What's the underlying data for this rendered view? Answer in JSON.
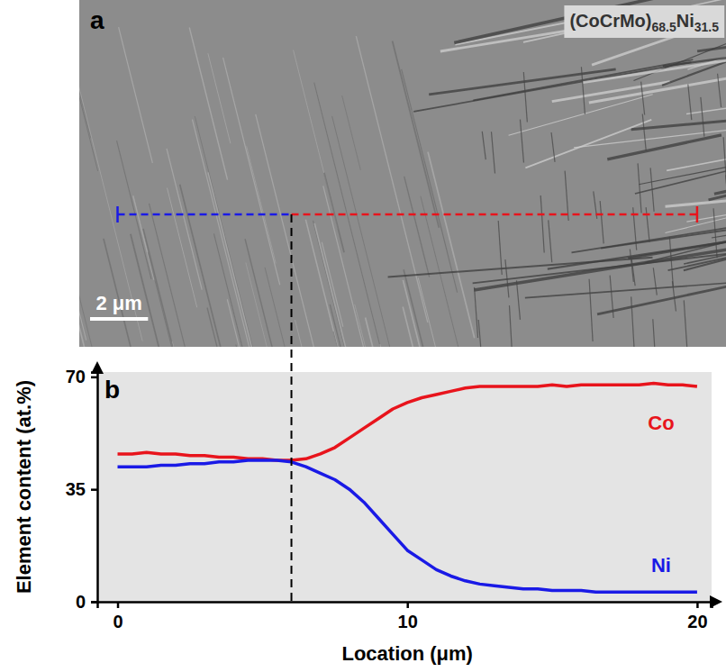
{
  "image_panel": {
    "letter": "a",
    "sample_label": [
      "(CoCrMo)",
      "68.5",
      "Ni",
      "31.5"
    ],
    "scale_bar": {
      "label": "2 μm",
      "value": 2
    }
  },
  "chart_data": {
    "type": "line",
    "letter": "b",
    "x_label": "Location (μm)",
    "y_label": "Element content (at.%)",
    "x": [
      0,
      0.5,
      1,
      1.5,
      2,
      2.5,
      3,
      3.5,
      4,
      4.5,
      5,
      5.5,
      6,
      6.5,
      7,
      7.5,
      8,
      8.5,
      9,
      9.5,
      10,
      10.5,
      11,
      11.5,
      12,
      12.5,
      13,
      13.5,
      14,
      14.5,
      15,
      15.5,
      16,
      16.5,
      17,
      17.5,
      18,
      18.5,
      19,
      19.5,
      20
    ],
    "series": [
      {
        "name": "Co",
        "color": "#e8141c",
        "line_style": "solid",
        "values": [
          46,
          46,
          46.5,
          46,
          46,
          45.5,
          45.5,
          45,
          45,
          44.5,
          44.5,
          44,
          44,
          44.5,
          46,
          48,
          51,
          54,
          57,
          60,
          62,
          63.5,
          64.5,
          65.5,
          66.5,
          67,
          67,
          67,
          67,
          67,
          67.5,
          67,
          67.5,
          67.5,
          67.5,
          67.5,
          67.5,
          68,
          67.5,
          67.5,
          67
        ]
      },
      {
        "name": "Ni",
        "color": "#1a1ae6",
        "line_style": "solid",
        "values": [
          42,
          42,
          42,
          42.5,
          42.5,
          43,
          43,
          43.5,
          43.5,
          44,
          44,
          44,
          43.5,
          42,
          40,
          38,
          35,
          31,
          26,
          21,
          16,
          13,
          10,
          8,
          6.5,
          5.5,
          5,
          4.5,
          4,
          4,
          3.5,
          3.5,
          3.5,
          3,
          3,
          3,
          3,
          3,
          3,
          3,
          3
        ]
      }
    ],
    "marker_x": 6,
    "xlim": [
      -0.7,
      20.5
    ],
    "xticks": [
      0,
      10,
      20
    ],
    "ylim": [
      0,
      71.5
    ],
    "yticks": [
      0,
      35,
      70
    ],
    "grid": false
  }
}
